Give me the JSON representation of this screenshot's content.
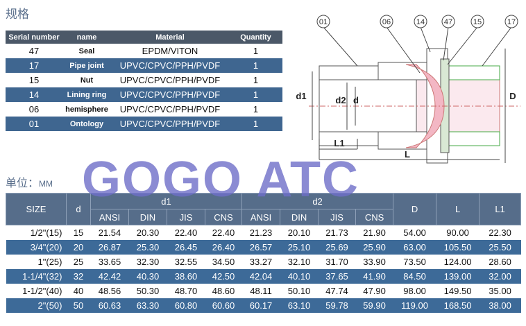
{
  "header": {
    "title": "规格"
  },
  "parts_table": {
    "columns": [
      "Serial number",
      "name",
      "Material",
      "Quantity"
    ],
    "rows": [
      [
        "47",
        "Seal",
        "EPDM/VITON",
        "1"
      ],
      [
        "17",
        "Pipe joint",
        "UPVC/CPVC/PPH/PVDF",
        "1"
      ],
      [
        "15",
        "Nut",
        "UPVC/CPVC/PPH/PVDF",
        "1"
      ],
      [
        "14",
        "Lining ring",
        "UPVC/CPVC/PPH/PVDF",
        "1"
      ],
      [
        "06",
        "hemisphere",
        "UPVC/CPVC/PPH/PVDF",
        "1"
      ],
      [
        "01",
        "Ontology",
        "UPVC/CPVC/PPH/PVDF",
        "1"
      ]
    ]
  },
  "diagram": {
    "callouts": [
      "01",
      "06",
      "14",
      "47",
      "15",
      "17"
    ],
    "dimensions": [
      "d1",
      "d2",
      "d",
      "D",
      "L1",
      "L"
    ]
  },
  "unit_label": "单位：",
  "unit": "MM",
  "size_table": {
    "header_top": [
      "SIZE",
      "d",
      "d1",
      "d2",
      "D",
      "L",
      "L1"
    ],
    "header_sub": [
      "ANSI",
      "DIN",
      "JIS",
      "CNS",
      "ANSI",
      "DIN",
      "JIS",
      "CNS"
    ],
    "rows": [
      [
        "1/2\"(15)",
        "15",
        "21.54",
        "20.30",
        "22.40",
        "22.40",
        "21.23",
        "20.10",
        "21.73",
        "21.90",
        "54.00",
        "90.00",
        "22.30"
      ],
      [
        "3/4\"(20)",
        "20",
        "26.87",
        "25.30",
        "26.45",
        "26.40",
        "26.57",
        "25.10",
        "25.69",
        "25.90",
        "63.00",
        "105.50",
        "25.50"
      ],
      [
        "1\"(25)",
        "25",
        "33.65",
        "32.30",
        "32.55",
        "34.50",
        "33.27",
        "32.10",
        "31.70",
        "33.90",
        "73.50",
        "124.00",
        "28.60"
      ],
      [
        "1-1/4\"(32)",
        "32",
        "42.42",
        "40.30",
        "38.60",
        "42.50",
        "42.04",
        "40.10",
        "37.65",
        "41.90",
        "84.50",
        "139.00",
        "32.00"
      ],
      [
        "1-1/2\"(40)",
        "40",
        "48.56",
        "50.30",
        "48.70",
        "48.60",
        "48.11",
        "50.10",
        "47.74",
        "47.90",
        "98.00",
        "149.50",
        "35.00"
      ],
      [
        "2\"(50)",
        "50",
        "60.63",
        "63.30",
        "60.80",
        "60.60",
        "60.17",
        "63.10",
        "59.78",
        "59.90",
        "119.00",
        "168.50",
        "38.00"
      ]
    ]
  },
  "watermark": "GOGO ATC"
}
